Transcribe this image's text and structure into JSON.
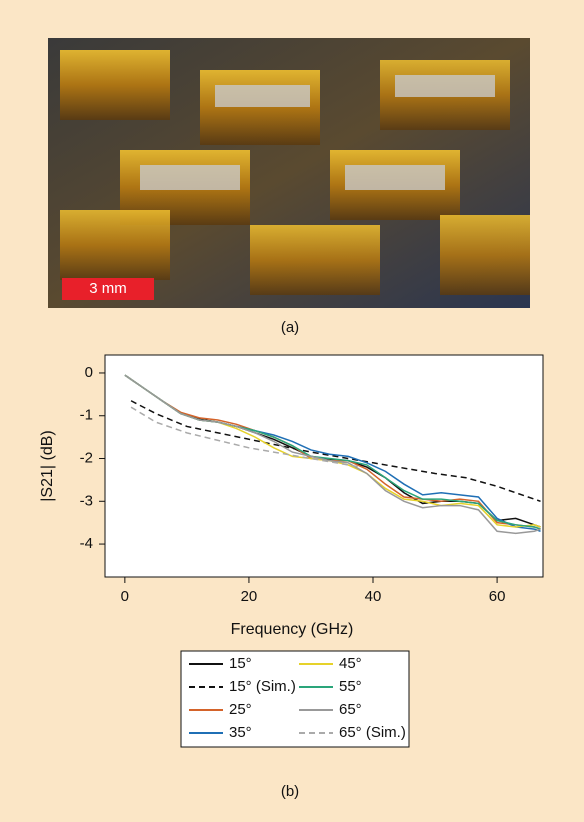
{
  "figure": {
    "scale_bar": "3 mm",
    "caption_a": "(a)",
    "caption_b": "(b)"
  },
  "chart_data": {
    "type": "line",
    "xlabel": "Frequency (GHz)",
    "ylabel": "|S21| (dB)",
    "xlim": [
      -3.2,
      67.4
    ],
    "ylim": [
      -4.77,
      0.42
    ],
    "xticks": [
      0,
      20,
      40,
      60
    ],
    "yticks": [
      0,
      -1,
      -2,
      -3,
      -4
    ],
    "x": [
      0,
      3,
      6,
      9,
      12,
      15,
      18,
      21,
      24,
      27,
      30,
      33,
      36,
      39,
      42,
      45,
      48,
      51,
      54,
      57,
      60,
      63,
      66,
      67
    ],
    "legend": "below",
    "legend_columns": 2,
    "series": [
      {
        "name": "15°",
        "color": "#111111",
        "dashed": false,
        "values": [
          -0.05,
          -0.35,
          -0.65,
          -0.95,
          -1.08,
          -1.15,
          -1.25,
          -1.4,
          -1.55,
          -1.75,
          -1.95,
          -2.02,
          -2.05,
          -2.2,
          -2.45,
          -2.8,
          -3.05,
          -3.0,
          -3.0,
          -3.05,
          -3.45,
          -3.4,
          -3.55,
          -3.6
        ]
      },
      {
        "name": "15° (Sim.)",
        "color": "#111111",
        "dashed": true,
        "x": [
          1,
          5,
          10,
          20,
          30,
          40,
          50,
          55,
          60,
          67
        ],
        "values": [
          -0.65,
          -0.95,
          -1.25,
          -1.55,
          -1.85,
          -2.1,
          -2.35,
          -2.45,
          -2.65,
          -3.0
        ]
      },
      {
        "name": "25°",
        "color": "#d4632a",
        "dashed": false,
        "values": [
          -0.05,
          -0.35,
          -0.65,
          -0.92,
          -1.05,
          -1.1,
          -1.2,
          -1.35,
          -1.5,
          -1.7,
          -2.0,
          -2.05,
          -2.05,
          -2.25,
          -2.6,
          -2.9,
          -2.95,
          -3.0,
          -2.95,
          -3.0,
          -3.5,
          -3.55,
          -3.6,
          -3.65
        ]
      },
      {
        "name": "35°",
        "color": "#1f6fb5",
        "dashed": false,
        "values": [
          -0.05,
          -0.35,
          -0.65,
          -0.95,
          -1.1,
          -1.15,
          -1.25,
          -1.35,
          -1.45,
          -1.6,
          -1.8,
          -1.9,
          -1.95,
          -2.1,
          -2.3,
          -2.6,
          -2.85,
          -2.8,
          -2.85,
          -2.9,
          -3.4,
          -3.6,
          -3.65,
          -3.7
        ]
      },
      {
        "name": "45°",
        "color": "#e6d22a",
        "dashed": false,
        "values": [
          -0.05,
          -0.35,
          -0.65,
          -0.95,
          -1.1,
          -1.15,
          -1.3,
          -1.5,
          -1.75,
          -1.95,
          -2.0,
          -2.05,
          -2.15,
          -2.35,
          -2.7,
          -2.95,
          -3.0,
          -3.1,
          -3.05,
          -3.1,
          -3.55,
          -3.6,
          -3.55,
          -3.6
        ]
      },
      {
        "name": "55°",
        "color": "#2aa57a",
        "dashed": false,
        "values": [
          -0.05,
          -0.35,
          -0.65,
          -0.95,
          -1.1,
          -1.15,
          -1.25,
          -1.35,
          -1.5,
          -1.7,
          -1.95,
          -2.0,
          -2.05,
          -2.15,
          -2.45,
          -2.75,
          -2.95,
          -2.95,
          -3.0,
          -3.05,
          -3.45,
          -3.55,
          -3.6,
          -3.65
        ]
      },
      {
        "name": "65°",
        "color": "#999999",
        "dashed": false,
        "values": [
          -0.05,
          -0.35,
          -0.65,
          -0.95,
          -1.1,
          -1.15,
          -1.25,
          -1.4,
          -1.6,
          -1.85,
          -1.95,
          -2.05,
          -2.1,
          -2.35,
          -2.75,
          -3.0,
          -3.15,
          -3.1,
          -3.1,
          -3.2,
          -3.7,
          -3.75,
          -3.7,
          -3.65
        ]
      },
      {
        "name": "65° (Sim.)",
        "color": "#aaaaaa",
        "dashed": true,
        "x": [
          1,
          5,
          10,
          20,
          30,
          38
        ],
        "values": [
          -0.8,
          -1.15,
          -1.4,
          -1.75,
          -2.0,
          -2.2
        ]
      }
    ]
  }
}
